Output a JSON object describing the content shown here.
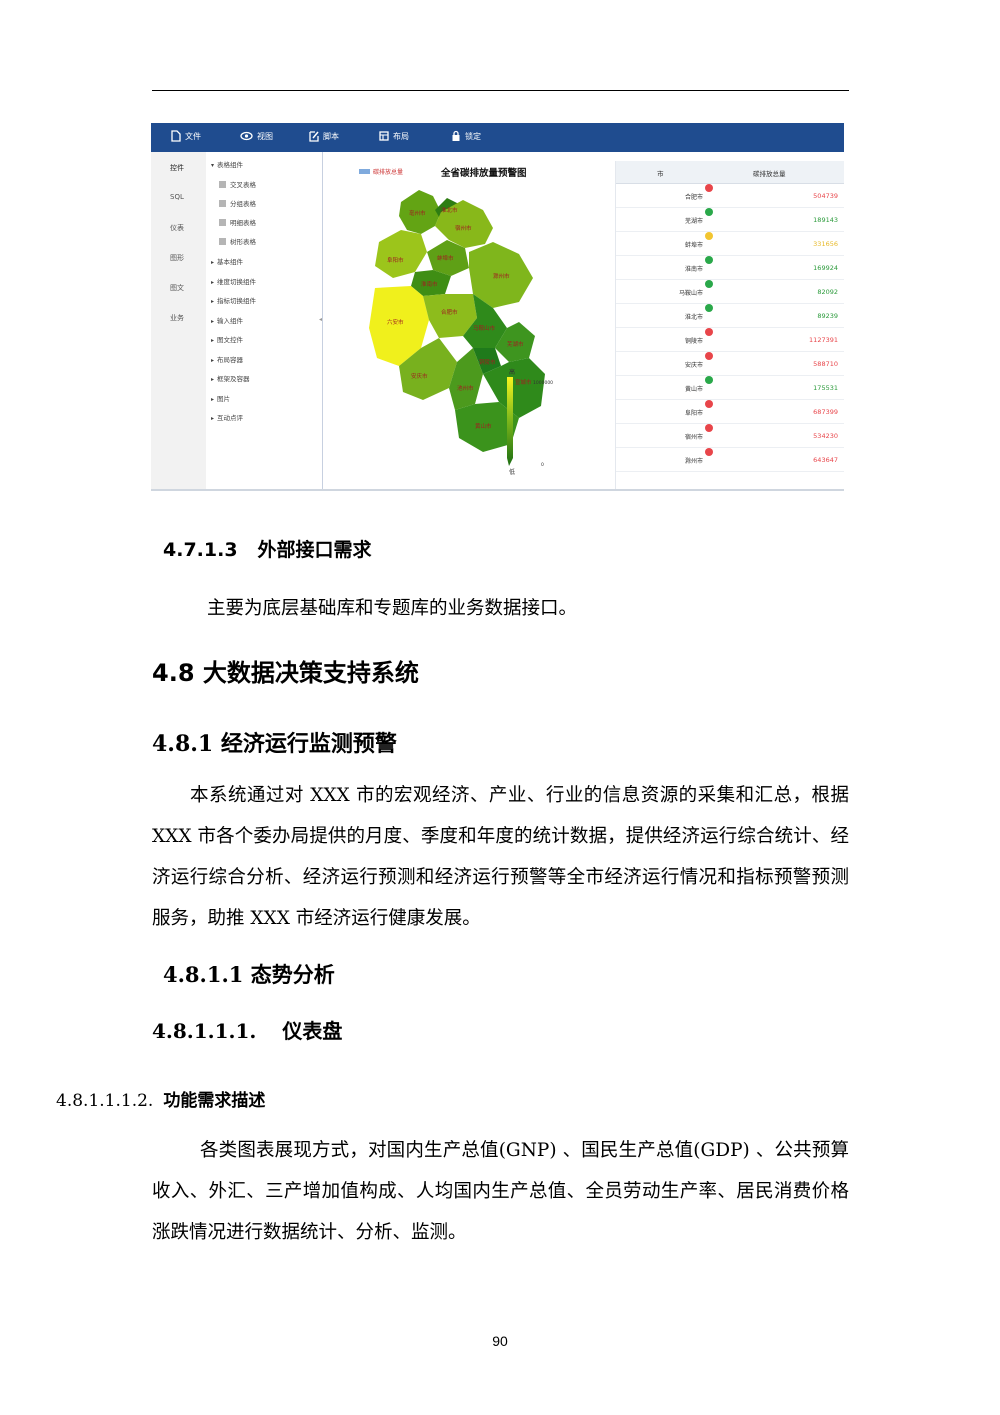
{
  "screenshot": {
    "toolbar": {
      "file": "文件",
      "view": "视图",
      "script": "脚本",
      "layout": "布局",
      "lock": "锁定"
    },
    "left_nav": [
      "控件",
      "SQL",
      "仪表",
      "图形",
      "图文",
      "业务"
    ],
    "tree": {
      "table_group": "表格组件",
      "table_items": [
        "交叉表格",
        "分组表格",
        "明细表格",
        "树形表格"
      ],
      "groups": [
        "基本组件",
        "维度切换组件",
        "指标切换组件",
        "输入组件",
        "图文控件",
        "布局容器",
        "框架及容器",
        "图片",
        "互动点评"
      ]
    },
    "map": {
      "title": "全省碳排放量预警图",
      "legend_label": "碳排放总量",
      "scale_high": "高",
      "scale_low": "低",
      "scale_max": "1000000",
      "scale_min": "0",
      "region_labels": [
        "亳州市",
        "淮北市",
        "宿州市",
        "阜阳市",
        "蚌埠市",
        "淮南市",
        "滁州市",
        "六安市",
        "合肥市",
        "马鞍山市",
        "芜湖市",
        "安庆市",
        "池州市",
        "铜陵市",
        "宣城市",
        "黄山市"
      ]
    },
    "table": {
      "col_city": "市",
      "col_total": "碳排放总量",
      "rows": [
        {
          "city": "合肥市",
          "value": "504739",
          "status": "red"
        },
        {
          "city": "芜湖市",
          "value": "189143",
          "status": "green"
        },
        {
          "city": "蚌埠市",
          "value": "331656",
          "status": "yellow"
        },
        {
          "city": "淮南市",
          "value": "169924",
          "status": "green"
        },
        {
          "city": "马鞍山市",
          "value": "82092",
          "status": "green"
        },
        {
          "city": "淮北市",
          "value": "89239",
          "status": "green"
        },
        {
          "city": "铜陵市",
          "value": "1127391",
          "status": "red"
        },
        {
          "city": "安庆市",
          "value": "588710",
          "status": "red"
        },
        {
          "city": "黄山市",
          "value": "175531",
          "status": "green"
        },
        {
          "city": "阜阳市",
          "value": "687399",
          "status": "red"
        },
        {
          "city": "宿州市",
          "value": "534230",
          "status": "red"
        },
        {
          "city": "滁州市",
          "value": "643647",
          "status": "red"
        }
      ],
      "status_colors": {
        "red": "#e8454a",
        "green": "#2aa84a",
        "yellow": "#f2c531"
      },
      "value_colors": {
        "red": "#e8454a",
        "green": "#2a9a3a",
        "yellow": "#e7b928"
      }
    }
  },
  "sections": {
    "h_4_7_1_3_num": "4.7.1.3",
    "h_4_7_1_3_text": "外部接口需求",
    "p_4_7_1_3": "主要为底层基础库和专题库的业务数据接口。",
    "h_4_8": "4.8 大数据决策支持系统",
    "h_4_8_1": "4.8.1 经济运行监测预警",
    "p_4_8_1": "本系统通过对 XXX 市的宏观经济、产业、行业的信息资源的采集和汇总，根据 XXX 市各个委办局提供的月度、季度和年度的统计数据，提供经济运行综合统计、经济运行综合分析、经济运行预测和经济运行预警等全市经济运行情况和指标预警预测服务，助推 XXX 市经济运行健康发展。",
    "h_4_8_1_1": "4.8.1.1 态势分析",
    "h_4_8_1_1_1_num": "4.8.1.1.1.",
    "h_4_8_1_1_1_text": "仪表盘",
    "h_4_8_1_1_1_2_num": "4.8.1.1.1.2.",
    "h_4_8_1_1_1_2_text": "功能需求描述",
    "p_4_8_1_1_1_2": "各类图表展现方式，对国内生产总值(GNP) 、国民生产总值(GDP) 、公共预算收入、外汇、三产增加值构成、人均国内生产总值、全员劳动生产率、居民消费价格涨跌情况进行数据统计、分析、监测。"
  },
  "page_number": "90"
}
